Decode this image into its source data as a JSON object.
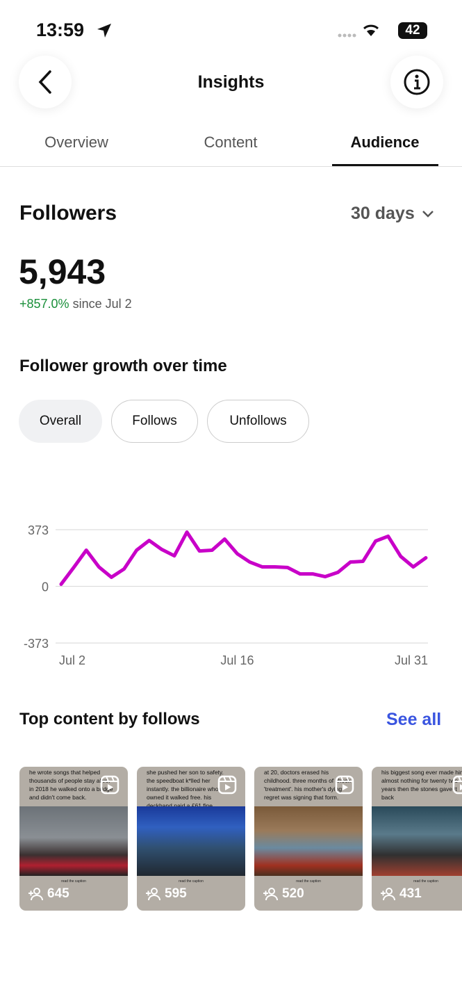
{
  "status_bar": {
    "time": "13:59",
    "battery": "42"
  },
  "header": {
    "title": "Insights"
  },
  "tabs": [
    "Overview",
    "Content",
    "Audience"
  ],
  "followers": {
    "title": "Followers",
    "period": "30 days",
    "count": "5,943",
    "change": "+857.0%",
    "since": "since Jul 2"
  },
  "growth": {
    "title": "Follower growth over time",
    "filters": [
      "Overall",
      "Follows",
      "Unfollows"
    ]
  },
  "chart_data": {
    "type": "line",
    "color": "#c800c8",
    "grid": true,
    "categories": [
      "Jul 2",
      null,
      null,
      null,
      null,
      null,
      null,
      null,
      null,
      null,
      null,
      null,
      null,
      null,
      "Jul 16",
      null,
      null,
      null,
      null,
      null,
      null,
      null,
      null,
      null,
      null,
      null,
      null,
      null,
      null,
      "Jul 31"
    ],
    "values": [
      14,
      124,
      238,
      128,
      60,
      114,
      238,
      302,
      243,
      201,
      357,
      233,
      238,
      311,
      215,
      160,
      128,
      128,
      124,
      82,
      82,
      64,
      92,
      160,
      165,
      298,
      330,
      197,
      128,
      188
    ],
    "ylim": [
      -373,
      373
    ],
    "yticks": [
      -373,
      0,
      373
    ]
  },
  "top_content": {
    "title": "Top content by follows",
    "link": "See all",
    "items": [
      {
        "caption": "he wrote songs that helped thousands of people stay alive. in 2018 he walked onto a bridge and didn't come back.",
        "footer": "read the caption",
        "follows": 645
      },
      {
        "caption": "she pushed her son to safety. the speedboat k*lled her instantly. the billionaire who owned it walked free. his deckhand paid a £61 fine.",
        "footer": "read the caption",
        "follows": 595
      },
      {
        "caption": "at 20, doctors erased his childhood. three months of shock 'treatment'. his mother's dying regret was signing that form.",
        "footer": "read the caption",
        "follows": 520
      },
      {
        "caption": "his biggest song ever made him almost nothing for twenty two years then the stones gave it back",
        "footer": "read the caption",
        "follows": 431
      }
    ]
  }
}
